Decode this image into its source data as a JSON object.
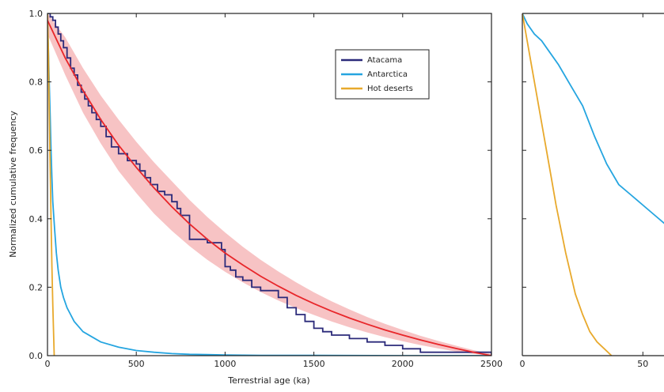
{
  "chart_data": [
    {
      "type": "line",
      "xlabel": "Terrestrial age (ka)",
      "ylabel": "Normalized cumulative frequency",
      "xlim": [
        0,
        2500
      ],
      "ylim": [
        0,
        1.0
      ],
      "xticks": [
        0,
        500,
        1000,
        1500,
        2000,
        2500
      ],
      "yticks": [
        0.0,
        0.2,
        0.4,
        0.6,
        0.8,
        1.0
      ],
      "xtick_labels": [
        "0",
        "500",
        "1000",
        "1500",
        "2000",
        "2500"
      ],
      "ytick_labels": [
        "0.0",
        "0.2",
        "0.4",
        "0.6",
        "0.8",
        "1.0"
      ],
      "grid": false,
      "legend_position": "top-right",
      "legend": [
        {
          "label": "Atacama",
          "color": "#2b2a7a"
        },
        {
          "label": "Antarctica",
          "color": "#25a5e0"
        },
        {
          "label": "Hot deserts",
          "color": "#e8a92c"
        }
      ],
      "series": [
        {
          "name": "Atacama",
          "style": "step",
          "color": "#2b2a7a",
          "x": [
            0,
            15,
            30,
            45,
            60,
            75,
            90,
            110,
            130,
            150,
            170,
            190,
            210,
            230,
            250,
            275,
            300,
            330,
            360,
            400,
            450,
            500,
            520,
            550,
            580,
            620,
            660,
            700,
            730,
            750,
            800,
            900,
            980,
            1000,
            1030,
            1060,
            1100,
            1150,
            1200,
            1300,
            1350,
            1400,
            1450,
            1500,
            1550,
            1600,
            1700,
            1800,
            1900,
            2000,
            2100,
            2300,
            2500
          ],
          "y": [
            1.0,
            0.99,
            0.98,
            0.96,
            0.94,
            0.92,
            0.9,
            0.87,
            0.84,
            0.82,
            0.79,
            0.77,
            0.75,
            0.73,
            0.71,
            0.69,
            0.67,
            0.64,
            0.61,
            0.59,
            0.57,
            0.56,
            0.54,
            0.52,
            0.5,
            0.48,
            0.47,
            0.45,
            0.43,
            0.41,
            0.34,
            0.33,
            0.31,
            0.26,
            0.25,
            0.23,
            0.22,
            0.2,
            0.19,
            0.17,
            0.14,
            0.12,
            0.1,
            0.08,
            0.07,
            0.06,
            0.05,
            0.04,
            0.03,
            0.02,
            0.01,
            0.01,
            0.0
          ]
        },
        {
          "name": "Fit",
          "style": "line",
          "color": "#e8262a",
          "x": [
            0,
            100,
            200,
            300,
            400,
            500,
            600,
            700,
            800,
            900,
            1000,
            1100,
            1200,
            1300,
            1400,
            1500,
            1600,
            1700,
            1800,
            1900,
            2000,
            2100,
            2200,
            2300,
            2400,
            2500
          ],
          "y": [
            0.98,
            0.87,
            0.775,
            0.69,
            0.615,
            0.55,
            0.49,
            0.435,
            0.385,
            0.34,
            0.3,
            0.265,
            0.232,
            0.203,
            0.176,
            0.152,
            0.13,
            0.11,
            0.092,
            0.075,
            0.06,
            0.046,
            0.033,
            0.021,
            0.01,
            0.0
          ]
        },
        {
          "name": "Fit uncertainty",
          "style": "band",
          "color": "#f4a9ab",
          "x": [
            0,
            100,
            200,
            300,
            400,
            500,
            600,
            700,
            800,
            900,
            1000,
            1100,
            1200,
            1300,
            1400,
            1500,
            1600,
            1700,
            1800,
            1900,
            2000,
            2100,
            2200,
            2300,
            2400,
            2500
          ],
          "y_low": [
            0.94,
            0.82,
            0.71,
            0.62,
            0.54,
            0.475,
            0.415,
            0.365,
            0.32,
            0.28,
            0.245,
            0.214,
            0.186,
            0.161,
            0.139,
            0.119,
            0.1,
            0.083,
            0.068,
            0.054,
            0.042,
            0.031,
            0.021,
            0.012,
            0.005,
            0.0
          ],
          "y_high": [
            1.0,
            0.93,
            0.84,
            0.76,
            0.69,
            0.625,
            0.565,
            0.51,
            0.455,
            0.405,
            0.36,
            0.318,
            0.28,
            0.246,
            0.214,
            0.185,
            0.159,
            0.135,
            0.113,
            0.093,
            0.075,
            0.058,
            0.043,
            0.029,
            0.016,
            0.005
          ]
        },
        {
          "name": "Antarctica",
          "style": "line",
          "color": "#25a5e0",
          "x": [
            0,
            5,
            10,
            15,
            20,
            25,
            30,
            40,
            50,
            60,
            75,
            90,
            110,
            130,
            150,
            175,
            200,
            250,
            300,
            400,
            500,
            600,
            700,
            800,
            900,
            1000,
            1200,
            1500,
            2000,
            2500
          ],
          "y": [
            0.98,
            0.9,
            0.8,
            0.7,
            0.6,
            0.52,
            0.45,
            0.37,
            0.3,
            0.25,
            0.2,
            0.17,
            0.14,
            0.12,
            0.1,
            0.085,
            0.07,
            0.055,
            0.04,
            0.025,
            0.015,
            0.01,
            0.006,
            0.004,
            0.003,
            0.002,
            0.001,
            0.001,
            0.0,
            0.0
          ]
        },
        {
          "name": "Hot deserts",
          "style": "line",
          "color": "#e8a92c",
          "x": [
            0,
            5,
            10,
            15,
            20,
            25,
            30,
            35,
            38
          ],
          "y": [
            1.0,
            0.9,
            0.72,
            0.55,
            0.4,
            0.26,
            0.15,
            0.05,
            0.0
          ]
        }
      ]
    },
    {
      "type": "line",
      "xlabel": "",
      "ylabel": "",
      "xlim": [
        0,
        65
      ],
      "ylim": [
        0,
        1.0
      ],
      "xticks": [
        0,
        50
      ],
      "xtick_labels": [
        "0",
        "50"
      ],
      "grid": false,
      "series": [
        {
          "name": "Antarctica",
          "style": "line",
          "color": "#25a5e0",
          "x": [
            0,
            2,
            5,
            8,
            10,
            15,
            20,
            25,
            30,
            35,
            40,
            45,
            50,
            55,
            60,
            65
          ],
          "y": [
            1.0,
            0.97,
            0.94,
            0.92,
            0.9,
            0.85,
            0.79,
            0.73,
            0.64,
            0.56,
            0.5,
            0.47,
            0.44,
            0.41,
            0.38,
            0.37
          ]
        },
        {
          "name": "Hot deserts",
          "style": "line",
          "color": "#e8a92c",
          "x": [
            0,
            2,
            4,
            6,
            8,
            10,
            12,
            14,
            16,
            18,
            20,
            22,
            25,
            28,
            31,
            34,
            37
          ],
          "y": [
            1.0,
            0.92,
            0.84,
            0.76,
            0.68,
            0.6,
            0.52,
            0.44,
            0.37,
            0.3,
            0.24,
            0.18,
            0.12,
            0.07,
            0.04,
            0.02,
            0.0
          ]
        }
      ]
    }
  ]
}
